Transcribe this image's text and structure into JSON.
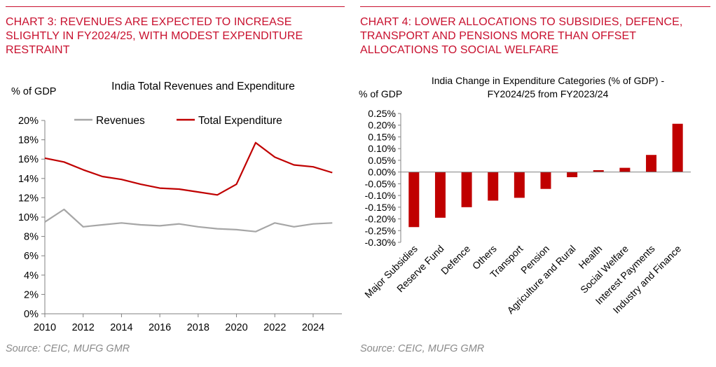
{
  "left_panel": {
    "heading": "CHART 3: REVENUES ARE EXPECTED TO INCREASE SLIGHTLY IN FY2024/25, WITH MODEST EXPENDITURE RESTRAINT",
    "source": "Source: CEIC, MUFG GMR"
  },
  "right_panel": {
    "heading": "CHART 4: LOWER ALLOCATIONS TO SUBSIDIES, DEFENCE, TRANSPORT AND PENSIONS MORE THAN OFFSET ALLOCATIONS TO SOCIAL WELFARE",
    "source": "Source: CEIC, MUFG GMR"
  },
  "colors": {
    "accent_red": "#c8102e",
    "line_red": "#c00000",
    "line_grey": "#a6a6a6",
    "bar_red": "#c00000"
  },
  "chart_data": [
    {
      "type": "line",
      "title": "India Total Revenues and Expenditure",
      "ylabel": "% of GDP",
      "ylim": [
        0,
        20
      ],
      "yticks": [
        0,
        2,
        4,
        6,
        8,
        10,
        12,
        14,
        16,
        18,
        20
      ],
      "ytick_labels": [
        "0%",
        "2%",
        "4%",
        "6%",
        "8%",
        "10%",
        "12%",
        "14%",
        "16%",
        "18%",
        "20%"
      ],
      "xlim": [
        2010,
        2025.5
      ],
      "xticks": [
        2010,
        2012,
        2014,
        2016,
        2018,
        2020,
        2022,
        2024
      ],
      "xtick_labels": [
        "2010",
        "2012",
        "2014",
        "2016",
        "2018",
        "2020",
        "2022",
        "2024"
      ],
      "legend_position": "top",
      "grid": false,
      "x": [
        2010,
        2011,
        2012,
        2013,
        2014,
        2015,
        2016,
        2017,
        2018,
        2019,
        2020,
        2021,
        2022,
        2023,
        2024,
        2025
      ],
      "series": [
        {
          "name": "Revenues",
          "color": "#a6a6a6",
          "values": [
            9.5,
            10.8,
            9.0,
            9.2,
            9.4,
            9.2,
            9.1,
            9.3,
            9.0,
            8.8,
            8.7,
            8.5,
            9.4,
            9.0,
            9.3,
            9.4
          ]
        },
        {
          "name": "Total Expenditure",
          "color": "#c00000",
          "values": [
            16.1,
            15.7,
            14.9,
            14.2,
            13.9,
            13.4,
            13.0,
            12.9,
            12.6,
            12.3,
            13.4,
            17.7,
            16.2,
            15.4,
            15.2,
            14.6
          ]
        }
      ]
    },
    {
      "type": "bar",
      "title_line1": "India Change in Expenditure Categories (% of GDP) -",
      "title_line2": "FY2024/25 from FY2023/24",
      "ylabel": "% of GDP",
      "ylim": [
        -0.3,
        0.25
      ],
      "yticks": [
        0.25,
        0.2,
        0.15,
        0.1,
        0.05,
        0.0,
        -0.05,
        -0.1,
        -0.15,
        -0.2,
        -0.25,
        -0.3
      ],
      "ytick_labels": [
        "0.25%",
        "0.20%",
        "0.15%",
        "0.10%",
        "0.05%",
        "0.00%",
        "-0.05%",
        "-0.10%",
        "-0.15%",
        "-0.20%",
        "-0.25%",
        "-0.30%"
      ],
      "grid": false,
      "color": "#c00000",
      "categories": [
        "Major Subsidies",
        "Reserve Fund",
        "Defence",
        "Others",
        "Transport",
        "Pension",
        "Agriculture and Rural",
        "Health",
        "Social Welfare",
        "Interest Payments",
        "Industry and Finance"
      ],
      "values": [
        -0.235,
        -0.195,
        -0.15,
        -0.122,
        -0.11,
        -0.072,
        -0.022,
        0.008,
        0.018,
        0.073,
        0.206
      ]
    }
  ]
}
